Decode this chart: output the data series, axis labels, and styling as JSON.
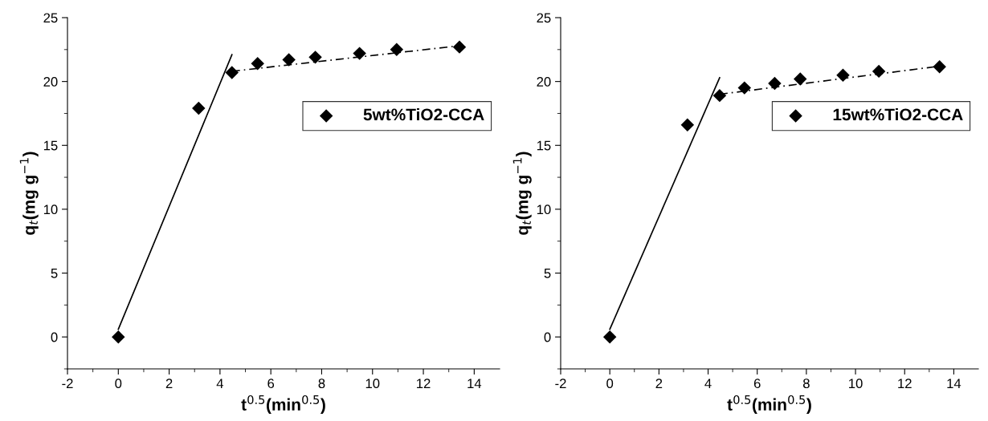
{
  "chart_data": [
    {
      "type": "scatter",
      "xlabel": "t$^{0.5}$(min$^{0.5}$)",
      "ylabel": "q$_{t}$(mg g$^{−1}$)",
      "xlim": [
        -2,
        15
      ],
      "ylim": [
        -2.5,
        25
      ],
      "xticks": [
        -2,
        {
          "value": -1,
          "label": null
        },
        0,
        {
          "value": 1,
          "label": null
        },
        2,
        {
          "value": 3,
          "label": null
        },
        4,
        {
          "value": 5,
          "label": null
        },
        6,
        {
          "value": 7,
          "label": null
        },
        8,
        {
          "value": 9,
          "label": null
        },
        10,
        {
          "value": 11,
          "label": null
        },
        12,
        {
          "value": 13,
          "label": null
        },
        14
      ],
      "yticks": [
        {
          "value": -2.5,
          "label": null
        },
        0,
        {
          "value": 2.5,
          "label": null
        },
        5,
        {
          "value": 7.5,
          "label": null
        },
        10,
        {
          "value": 12.5,
          "label": null
        },
        15,
        {
          "value": 17.5,
          "label": null
        },
        20,
        {
          "value": 22.5,
          "label": null
        },
        25
      ],
      "legend": "right",
      "grid": false,
      "series": [
        {
          "name": "5wt%TiO2-CCA",
          "color": "#000000",
          "marker": "diamond",
          "x": [
            0,
            3.16,
            4.47,
            5.48,
            6.71,
            7.75,
            9.49,
            10.95,
            13.42
          ],
          "values": [
            0,
            17.9,
            20.7,
            21.4,
            21.7,
            21.9,
            22.2,
            22.5,
            22.7
          ]
        },
        {
          "type": "line",
          "color": "#000000",
          "line_style": "solid",
          "x": [
            0,
            4.47
          ],
          "values": [
            0.6,
            22.1
          ]
        },
        {
          "type": "line",
          "color": "#000000",
          "line_style": "dashed",
          "x": [
            4.47,
            13.42
          ],
          "values": [
            20.8,
            22.8
          ]
        }
      ]
    },
    {
      "type": "scatter",
      "xlabel": "t$^{0.5}$(min$^{0.5}$)",
      "ylabel": "q$_{t}$(mg g$^{−1}$)",
      "xlim": [
        -2,
        15
      ],
      "ylim": [
        -2.5,
        25
      ],
      "xticks": [
        -2,
        {
          "value": -1,
          "label": null
        },
        0,
        {
          "value": 1,
          "label": null
        },
        2,
        {
          "value": 3,
          "label": null
        },
        4,
        {
          "value": 5,
          "label": null
        },
        6,
        {
          "value": 7,
          "label": null
        },
        8,
        {
          "value": 9,
          "label": null
        },
        10,
        {
          "value": 11,
          "label": null
        },
        12,
        {
          "value": 13,
          "label": null
        },
        14
      ],
      "yticks": [
        {
          "value": -2.5,
          "label": null
        },
        0,
        {
          "value": 2.5,
          "label": null
        },
        5,
        {
          "value": 7.5,
          "label": null
        },
        10,
        {
          "value": 12.5,
          "label": null
        },
        15,
        {
          "value": 17.5,
          "label": null
        },
        20,
        {
          "value": 22.5,
          "label": null
        },
        25
      ],
      "legend": "right",
      "grid": false,
      "series": [
        {
          "name": "15wt%TiO2-CCA",
          "color": "#000000",
          "marker": "diamond",
          "x": [
            0,
            3.16,
            4.47,
            5.48,
            6.71,
            7.75,
            9.49,
            10.95,
            13.42
          ],
          "values": [
            0,
            16.6,
            18.9,
            19.5,
            19.85,
            20.2,
            20.5,
            20.8,
            21.15
          ]
        },
        {
          "type": "line",
          "color": "#000000",
          "line_style": "solid",
          "x": [
            0,
            4.47
          ],
          "values": [
            0.6,
            20.3
          ]
        },
        {
          "type": "line",
          "color": "#000000",
          "line_style": "dashed",
          "x": [
            4.47,
            13.42
          ],
          "values": [
            19.0,
            21.2
          ]
        }
      ]
    }
  ]
}
